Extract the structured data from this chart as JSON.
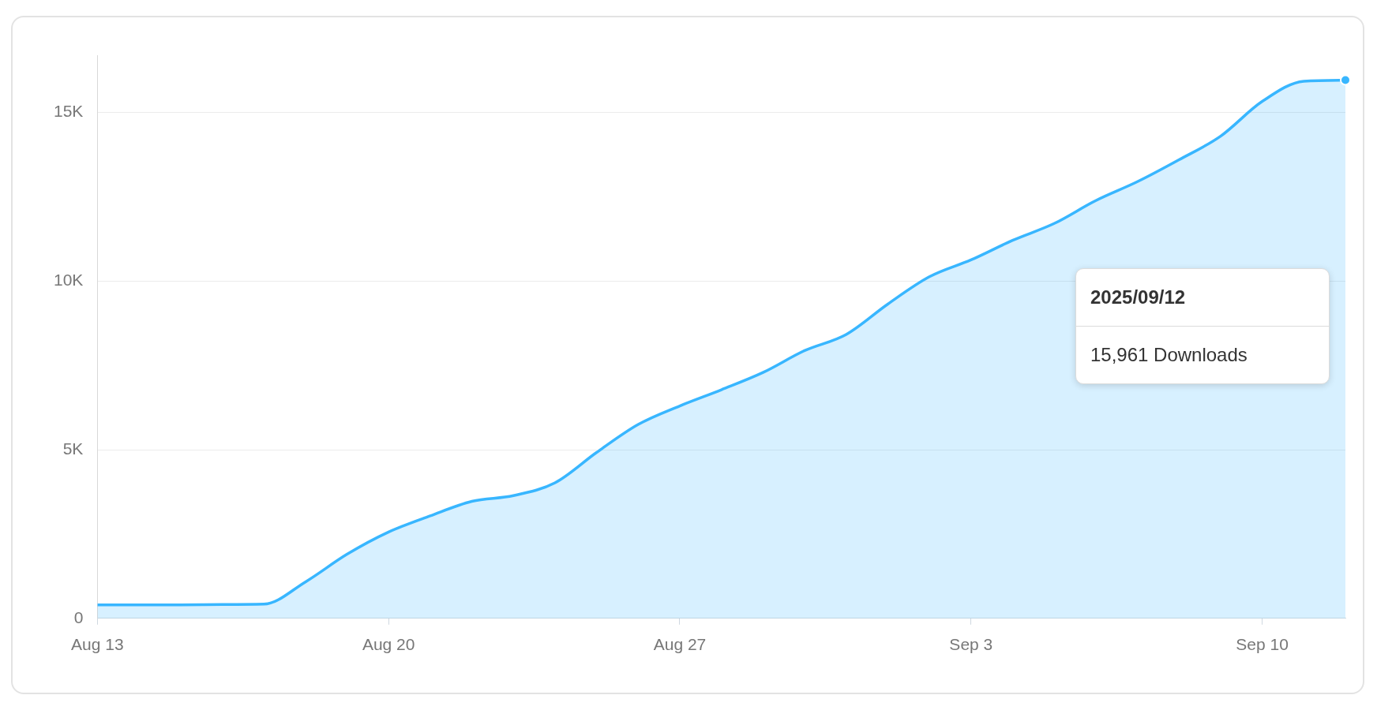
{
  "chart_data": {
    "type": "area",
    "x": [
      "2025-08-13",
      "2025-08-14",
      "2025-08-15",
      "2025-08-16",
      "2025-08-17",
      "2025-08-18",
      "2025-08-19",
      "2025-08-20",
      "2025-08-21",
      "2025-08-22",
      "2025-08-23",
      "2025-08-24",
      "2025-08-25",
      "2025-08-26",
      "2025-08-27",
      "2025-08-28",
      "2025-08-29",
      "2025-08-30",
      "2025-08-31",
      "2025-09-01",
      "2025-09-02",
      "2025-09-03",
      "2025-09-04",
      "2025-09-05",
      "2025-09-06",
      "2025-09-07",
      "2025-09-08",
      "2025-09-09",
      "2025-09-10",
      "2025-09-11",
      "2025-09-12"
    ],
    "series": [
      {
        "color": "#38b6ff",
        "values": [
          400,
          400,
          400,
          410,
          420,
          1080,
          1900,
          2560,
          3040,
          3470,
          3640,
          4020,
          4920,
          5750,
          6300,
          6780,
          7290,
          7940,
          8420,
          9320,
          10130,
          10630,
          11210,
          11710,
          12390,
          12950,
          13600,
          14300,
          15330,
          15930,
          15961
        ]
      }
    ],
    "xlim": [
      "2025-08-13",
      "2025-09-12"
    ],
    "xticks": [
      {
        "value": "2025-08-13",
        "label": "Aug 13"
      },
      {
        "value": "2025-08-20",
        "label": "Aug 20"
      },
      {
        "value": "2025-08-27",
        "label": "Aug 27"
      },
      {
        "value": "2025-09-03",
        "label": "Sep 3"
      },
      {
        "value": "2025-09-10",
        "label": "Sep 10"
      }
    ],
    "ylim": [
      0,
      16700
    ],
    "yticks": [
      {
        "value": 0,
        "label": "0"
      },
      {
        "value": 5000,
        "label": "5K"
      },
      {
        "value": 10000,
        "label": "10K"
      },
      {
        "value": 15000,
        "label": "15K"
      }
    ],
    "grid": "y",
    "legend": false,
    "marker": "none",
    "line_style": "solid",
    "annotations": [
      "2025/09/12",
      "15,961 Downloads"
    ]
  }
}
